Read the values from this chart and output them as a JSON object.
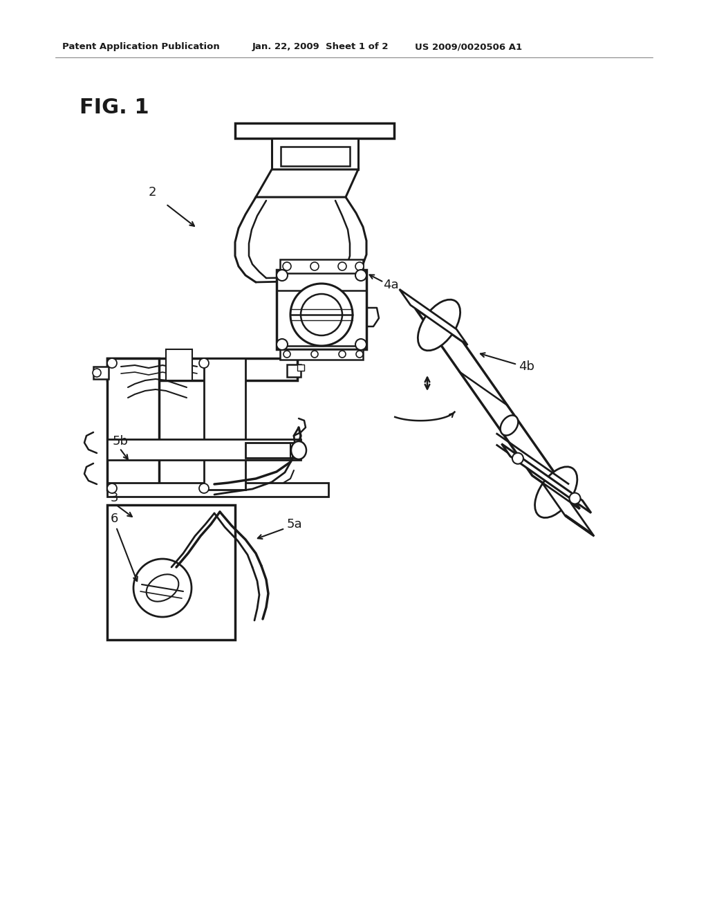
{
  "background_color": "#ffffff",
  "header_left": "Patent Application Publication",
  "header_center": "Jan. 22, 2009  Sheet 1 of 2",
  "header_right": "US 2009/0020506 A1",
  "fig_label": "FIG. 1",
  "line_color": "#1a1a1a",
  "line_width": 1.8,
  "page_width": 10.24,
  "page_height": 13.2,
  "dpi": 100
}
